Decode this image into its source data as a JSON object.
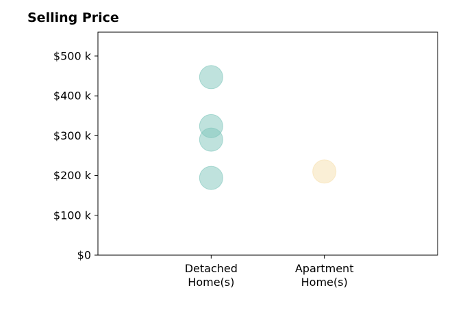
{
  "chart_data": {
    "type": "scatter",
    "title": "Selling Price",
    "xlabel": "",
    "ylabel": "",
    "categories": [
      [
        "Detached",
        "Home(s)"
      ],
      [
        "Apartment",
        "Home(s)"
      ]
    ],
    "series": [
      {
        "category_index": 0,
        "color": "#7fc6bc",
        "values": [
          447000,
          324000,
          290000,
          194000
        ]
      },
      {
        "category_index": 1,
        "color": "#f6dfad",
        "values": [
          210000
        ]
      }
    ],
    "ylim": [
      0,
      560000
    ],
    "xlim": [
      0,
      3
    ],
    "yticks": [
      0,
      100000,
      200000,
      300000,
      400000,
      500000
    ],
    "ytick_labels": [
      "$0",
      "$100 k",
      "$200 k",
      "$300 k",
      "$400 k",
      "$500 k"
    ],
    "grid": false,
    "legend": "none"
  }
}
